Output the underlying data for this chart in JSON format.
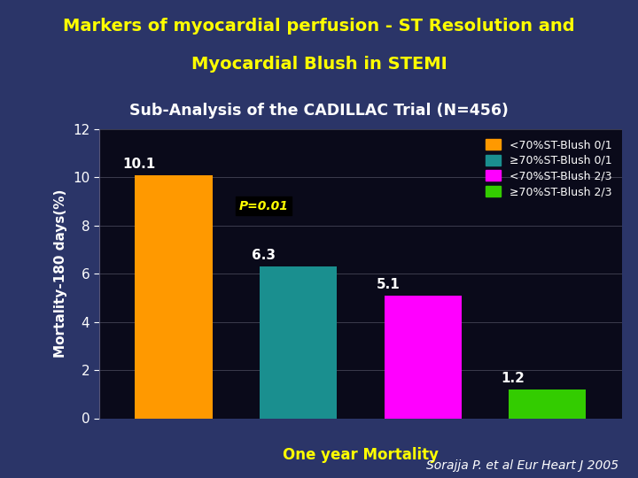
{
  "title_line1": "Markers of myocardial perfusion - ST Resolution and",
  "title_line2": "Myocardial Blush in STEMI",
  "subtitle": "Sub-Analysis of the CADILLAC Trial (N=456)",
  "categories": [
    "<70%ST-Blush 0/1",
    "≥70%ST-Blush 0/1",
    "<70%ST-Blush 2/3",
    "≥70%ST-Blush 2/3"
  ],
  "values": [
    10.1,
    6.3,
    5.1,
    1.2
  ],
  "bar_colors": [
    "#FF9900",
    "#1A8F8F",
    "#FF00FF",
    "#33CC00"
  ],
  "ylabel": "Mortality-180 days(%)",
  "xlabel": "One year Mortality",
  "ylim": [
    0,
    12
  ],
  "yticks": [
    0,
    2,
    4,
    6,
    8,
    10,
    12
  ],
  "annotation": "P=0.01",
  "chart_bg": "#0A0A1A",
  "outer_bg": "#2B3568",
  "title_bg": "#1E2D6B",
  "title_color": "#FFFF00",
  "subtitle_color": "#FFFFFF",
  "bar_label_color": "#FFFFFF",
  "ylabel_color": "#FFFFFF",
  "tick_color": "#FFFFFF",
  "legend_text_color": "#FFFFFF",
  "xlabel_color": "#FFFF00",
  "credit_text": "Sorajja P. et al Eur Heart J 2005",
  "red_line_color": "#BB0000",
  "annotation_color": "#FFFF00",
  "chart_border_color": "#555577"
}
